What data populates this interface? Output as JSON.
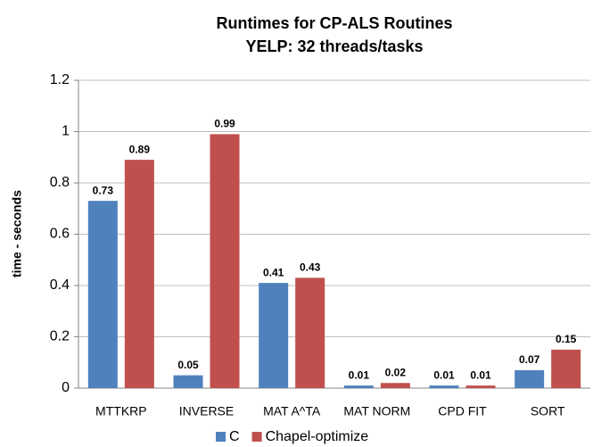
{
  "chart_data": {
    "type": "bar",
    "title": "Runtimes for CP-ALS Routines",
    "subtitle": "YELP: 32 threads/tasks",
    "y_label": "time - seconds",
    "categories": [
      "MTTKRP",
      "INVERSE",
      "MAT A^TA",
      "MAT NORM",
      "CPD FIT",
      "SORT"
    ],
    "series": [
      {
        "name": "C",
        "color": "#4f81bd",
        "values": [
          0.73,
          0.05,
          0.41,
          0.01,
          0.01,
          0.07
        ]
      },
      {
        "name": "Chapel-optimize",
        "color": "#c0504d",
        "values": [
          0.89,
          0.99,
          0.43,
          0.02,
          0.01,
          0.15
        ]
      }
    ],
    "ylim": [
      0,
      1.2
    ],
    "yticks": [
      0,
      0.2,
      0.4,
      0.6,
      0.8,
      1,
      1.2
    ],
    "grid": true,
    "legend": "bottom"
  }
}
